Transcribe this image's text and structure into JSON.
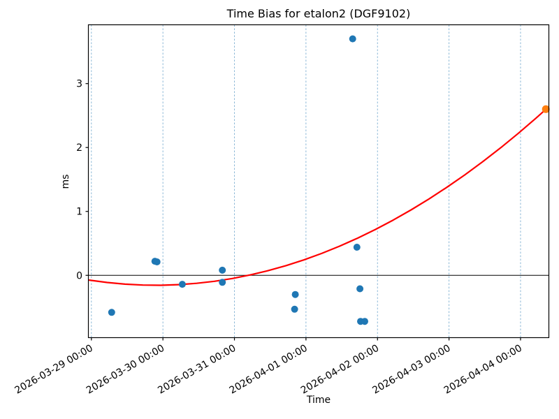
{
  "chart_data": {
    "type": "scatter",
    "title": "Time Bias for etalon2 (DGF9102)",
    "xlabel": "Time",
    "ylabel": "ms",
    "x_unit": "days since 2026-03-29 00:00",
    "xlim_days": [
      -0.042,
      6.396
    ],
    "ylim": [
      -0.975,
      3.92
    ],
    "grid": {
      "vertical_dashed": true,
      "horizontal": false,
      "color": "#7fb0d2"
    },
    "zero_line_y": 0,
    "x_ticks": [
      {
        "d": 0,
        "label": "2026-03-29 00:00"
      },
      {
        "d": 1,
        "label": "2026-03-30 00:00"
      },
      {
        "d": 2,
        "label": "2026-03-31 00:00"
      },
      {
        "d": 3,
        "label": "2026-04-01 00:00"
      },
      {
        "d": 4,
        "label": "2026-04-02 00:00"
      },
      {
        "d": 5,
        "label": "2026-04-03 00:00"
      },
      {
        "d": 6,
        "label": "2026-04-04 00:00"
      }
    ],
    "y_ticks": [
      0,
      1,
      2,
      3
    ],
    "series": [
      {
        "name": "fit-curve",
        "type": "line",
        "color": "#ff0000",
        "width": 2.2,
        "points": [
          [
            -0.03,
            -0.075
          ],
          [
            0.22,
            -0.112
          ],
          [
            0.47,
            -0.138
          ],
          [
            0.72,
            -0.152
          ],
          [
            0.97,
            -0.155
          ],
          [
            1.22,
            -0.146
          ],
          [
            1.47,
            -0.125
          ],
          [
            1.72,
            -0.093
          ],
          [
            1.97,
            -0.049
          ],
          [
            2.22,
            0.006
          ],
          [
            2.47,
            0.073
          ],
          [
            2.72,
            0.151
          ],
          [
            2.97,
            0.241
          ],
          [
            3.22,
            0.343
          ],
          [
            3.47,
            0.456
          ],
          [
            3.72,
            0.581
          ],
          [
            3.97,
            0.717
          ],
          [
            4.22,
            0.865
          ],
          [
            4.47,
            1.024
          ],
          [
            4.72,
            1.195
          ],
          [
            4.97,
            1.377
          ],
          [
            5.22,
            1.571
          ],
          [
            5.47,
            1.777
          ],
          [
            5.72,
            1.994
          ],
          [
            5.97,
            2.223
          ],
          [
            6.22,
            2.463
          ],
          [
            6.354,
            2.597
          ]
        ]
      },
      {
        "name": "observations",
        "type": "scatter",
        "color": "#1f77b4",
        "marker_radius": 5,
        "points": [
          {
            "t": "2026-03-29 06:47",
            "d": 0.283,
            "y": -0.58
          },
          {
            "t": "2026-03-29 21:19",
            "d": 0.888,
            "y": 0.22
          },
          {
            "t": "2026-03-29 22:00",
            "d": 0.917,
            "y": 0.21
          },
          {
            "t": "2026-03-30 06:30",
            "d": 1.271,
            "y": -0.14
          },
          {
            "t": "2026-03-30 19:57",
            "d": 1.831,
            "y": 0.08
          },
          {
            "t": "2026-03-30 19:57",
            "d": 1.831,
            "y": -0.11
          },
          {
            "t": "2026-03-31 20:11",
            "d": 2.841,
            "y": -0.53
          },
          {
            "t": "2026-03-31 20:25",
            "d": 2.851,
            "y": -0.3
          },
          {
            "t": "2026-04-01 15:40",
            "d": 3.653,
            "y": 3.7
          },
          {
            "t": "2026-04-01 17:05",
            "d": 3.712,
            "y": 0.44
          },
          {
            "t": "2026-04-01 18:06",
            "d": 3.754,
            "y": -0.21
          },
          {
            "t": "2026-04-01 18:19",
            "d": 3.763,
            "y": -0.72
          },
          {
            "t": "2026-04-01 19:44",
            "d": 3.822,
            "y": -0.72
          }
        ]
      },
      {
        "name": "extrapolated-point",
        "type": "scatter",
        "color": "#ff7f0e",
        "marker_radius": 5.5,
        "points": [
          {
            "t": "2026-04-04 08:30",
            "d": 6.354,
            "y": 2.6
          }
        ]
      }
    ]
  }
}
